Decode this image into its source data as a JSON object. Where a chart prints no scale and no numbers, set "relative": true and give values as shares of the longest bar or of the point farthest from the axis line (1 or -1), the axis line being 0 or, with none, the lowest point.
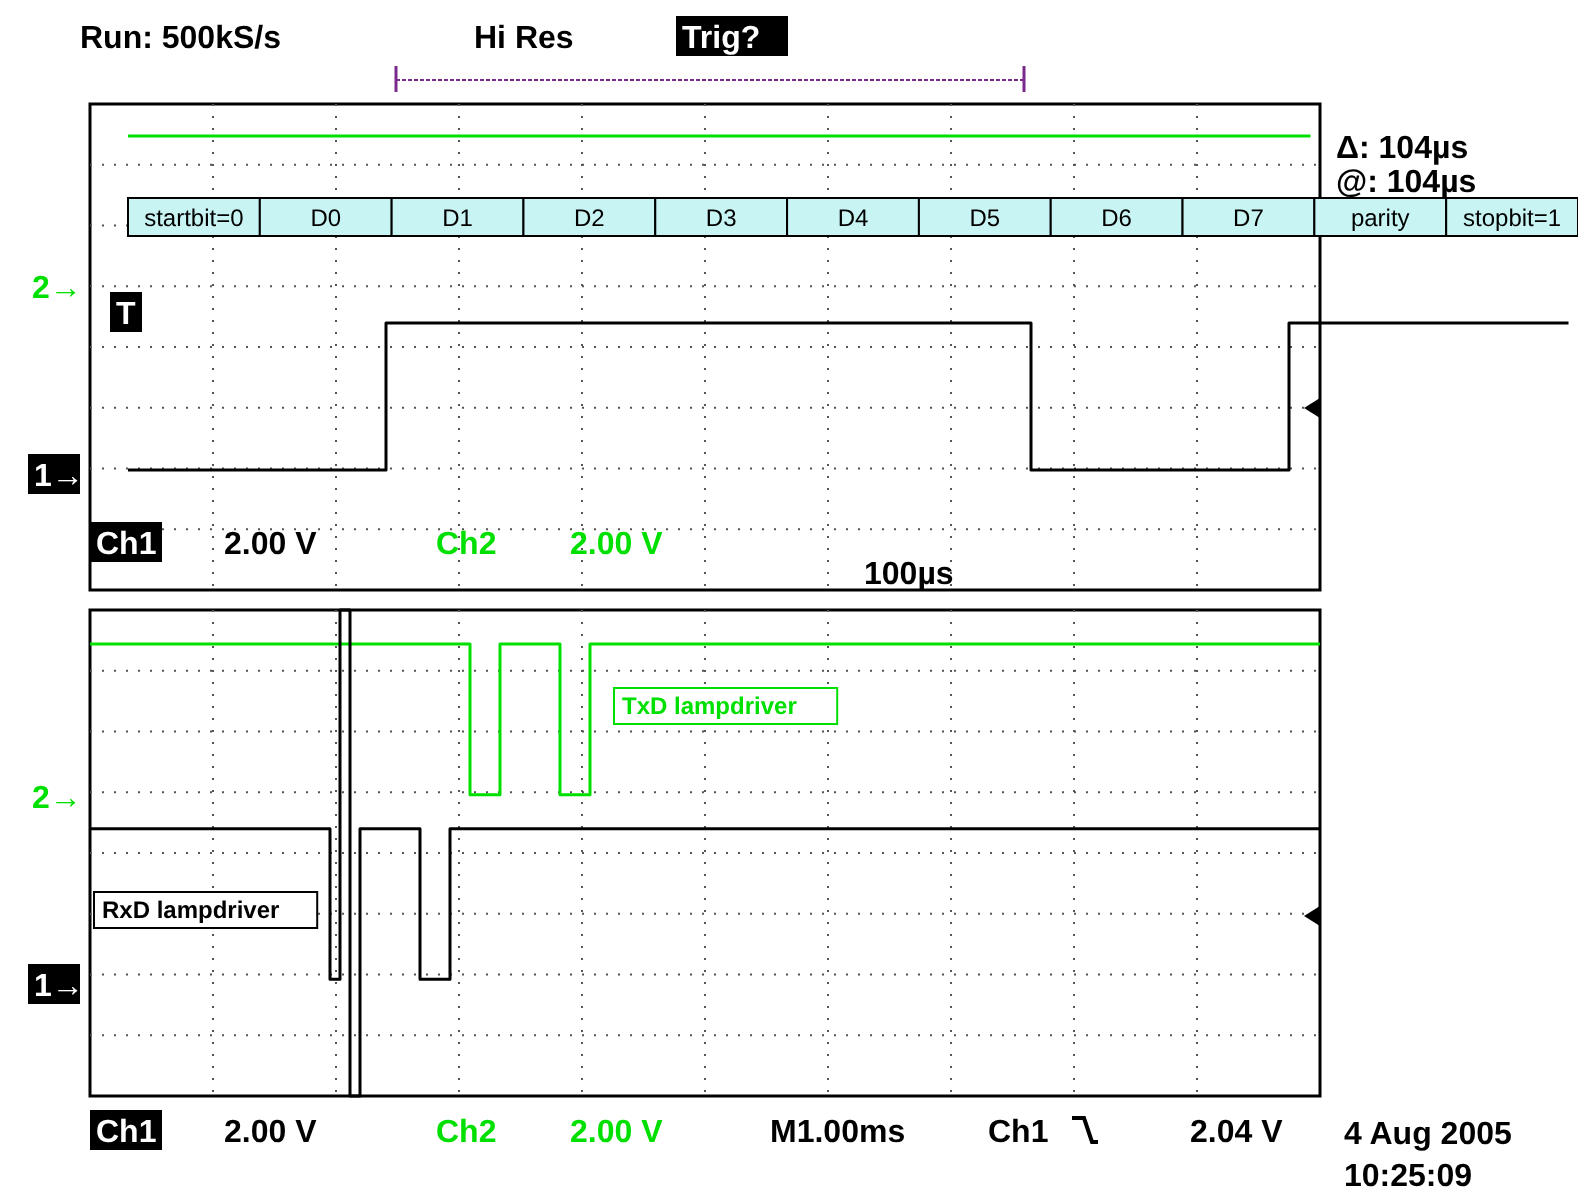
{
  "chart_data": [
    {
      "type": "step",
      "relative": true,
      "grid": true,
      "categories": [
        null,
        null,
        null,
        null,
        null,
        null,
        null,
        null,
        null,
        null,
        null,
        null,
        null,
        null,
        null,
        null,
        null,
        null,
        null,
        null,
        null,
        null,
        null,
        null,
        null,
        null,
        null,
        null,
        null,
        null,
        null,
        null,
        null,
        null,
        null,
        null,
        null,
        null,
        null,
        null,
        null,
        null,
        null,
        null,
        null,
        null,
        null,
        null,
        null,
        null,
        null,
        null,
        null,
        null,
        null,
        null,
        null,
        null,
        null,
        null,
        null,
        null,
        null,
        null,
        null,
        null,
        null,
        null
      ],
      "series": [
        {
          "color": "#00e000",
          "values": [
            1,
            1,
            1,
            1,
            1,
            1,
            1,
            1,
            1,
            1,
            1,
            1,
            1,
            1,
            1,
            1,
            1,
            1,
            1,
            1,
            1,
            1,
            1,
            1,
            1,
            1,
            1,
            1,
            1,
            1,
            1,
            1,
            1,
            1,
            1,
            1,
            1,
            1,
            1,
            1,
            1,
            1,
            1,
            1,
            1,
            1,
            1,
            1,
            1,
            1,
            1,
            1,
            1,
            1,
            1,
            1,
            null,
            null,
            null,
            null,
            null,
            null,
            null,
            null,
            null,
            null,
            null,
            null
          ]
        },
        {
          "color": "#000000",
          "values": [
            0,
            0,
            0,
            0,
            0,
            0,
            0,
            0,
            0,
            0,
            0,
            0,
            0.44,
            0.44,
            0.44,
            0.44,
            0.44,
            0.44,
            0.44,
            0.44,
            0.44,
            0.44,
            0.44,
            0.44,
            0.44,
            0.44,
            0.44,
            0.44,
            0.44,
            0.44,
            0.44,
            0.44,
            0.44,
            0.44,
            0.44,
            0.44,
            0.44,
            0.44,
            0.44,
            0.44,
            0.44,
            0.44,
            0,
            0,
            0,
            0,
            0,
            0,
            0,
            0,
            0,
            0,
            0,
            0,
            0.44,
            0.44,
            0.44,
            0.44,
            0.44,
            0.44,
            0.44,
            0.44,
            0.44,
            0.44,
            0.44,
            0.44,
            0.44,
            0.44
          ]
        }
      ],
      "annotations": [
        "Run: 500kS/s",
        "Hi Res",
        "Trig?",
        "Δ: 104µs",
        "@: 104µs",
        "startbit=0",
        "D0",
        "D1",
        "D2",
        "D3",
        "D4",
        "D5",
        "D6",
        "D7",
        "parity",
        "stopbit=1",
        "Ch1",
        "2.00 V",
        "Ch2",
        "2.00 V",
        "100µs",
        "2→",
        "1→",
        "T"
      ]
    },
    {
      "type": "step",
      "relative": true,
      "grid": true,
      "categories": [
        null,
        null,
        null,
        null,
        null,
        null,
        null,
        null,
        null,
        null,
        null,
        null,
        null,
        null,
        null,
        null,
        null,
        null,
        null,
        null,
        null,
        null,
        null,
        null,
        null,
        null,
        null,
        null,
        null,
        null,
        null,
        null,
        null,
        null,
        null,
        null,
        null,
        null,
        null,
        null,
        null,
        null,
        null,
        null,
        null,
        null,
        null,
        null,
        null,
        null,
        null,
        null,
        null,
        null,
        null,
        null,
        null,
        null,
        null,
        null,
        null,
        null,
        null,
        null,
        null,
        null,
        null,
        null,
        null,
        null,
        null,
        null,
        null,
        null,
        null,
        null,
        null,
        null,
        null,
        null,
        null,
        null,
        null,
        null,
        null,
        null,
        null,
        null,
        null,
        null,
        null,
        null,
        null,
        null,
        null,
        null,
        null,
        null,
        null,
        null,
        null,
        null,
        null,
        null,
        null,
        null,
        null,
        null,
        null,
        null,
        null,
        null,
        null,
        null,
        null,
        null,
        null,
        null,
        null,
        null,
        null,
        null,
        null,
        null
      ],
      "series": [
        {
          "name": "TxD lampdriver",
          "color": "#00e000",
          "values": [
            0.93,
            0.93,
            0.93,
            0.93,
            0.93,
            0.93,
            0.93,
            0.93,
            0.93,
            0.93,
            0.93,
            0.93,
            0.93,
            0.93,
            0.93,
            0.93,
            0.93,
            0.93,
            0.93,
            0.93,
            0.93,
            0.93,
            0.93,
            0.93,
            0.93,
            0.93,
            0.93,
            0.93,
            0.93,
            0.93,
            0.93,
            0.93,
            0.93,
            0.93,
            0.93,
            0.93,
            0.93,
            0.93,
            0.62,
            0.62,
            0.62,
            0.93,
            0.93,
            0.93,
            0.93,
            0.93,
            0.93,
            0.62,
            0.62,
            0.62,
            0.93,
            0.93,
            0.93,
            0.93,
            0.93,
            0.93,
            0.93,
            0.93,
            0.93,
            0.93,
            0.93,
            0.93,
            0.93,
            0.93,
            0.93,
            0.93,
            0.93,
            0.93,
            0.93,
            0.93,
            0.93,
            0.93,
            0.93,
            0.93,
            0.93,
            0.93,
            0.93,
            0.93,
            0.93,
            0.93,
            0.93,
            0.93,
            0.93,
            0.93,
            0.93,
            0.93,
            0.93,
            0.93,
            0.93,
            0.93,
            0.93,
            0.93,
            0.93,
            0.93,
            0.93,
            0.93,
            0.93,
            0.93,
            0.93,
            0.93,
            0.93,
            0.93,
            0.93,
            0.93,
            0.93,
            0.93,
            0.93,
            0.93,
            0.93,
            0.93,
            0.93,
            0.93,
            0.93,
            0.93,
            0.93,
            0.93,
            0.93,
            0.93,
            0.93,
            0.93,
            0.93,
            0.93,
            0.93,
            0.93
          ]
        },
        {
          "name": "RxD lampdriver",
          "color": "#000000",
          "values": [
            0.55,
            0.55,
            0.55,
            0.55,
            0.55,
            0.55,
            0.55,
            0.55,
            0.55,
            0.55,
            0.55,
            0.55,
            0.55,
            0.55,
            0.55,
            0.55,
            0.55,
            0.55,
            0.55,
            0.55,
            0.55,
            0.55,
            0.55,
            0.55,
            0.24,
            1,
            0,
            0.55,
            0.55,
            0.55,
            0.55,
            0.55,
            0.55,
            0.24,
            0.24,
            0.24,
            0.55,
            0.55,
            0.55,
            0.55,
            0.55,
            0.55,
            0.55,
            0.55,
            0.55,
            0.55,
            0.55,
            0.55,
            0.55,
            0.55,
            0.55,
            0.55,
            0.55,
            0.55,
            0.55,
            0.55,
            0.55,
            0.55,
            0.55,
            0.55,
            0.55,
            0.55,
            0.55,
            0.55,
            0.55,
            0.55,
            0.55,
            0.55,
            0.55,
            0.55,
            0.55,
            0.55,
            0.55,
            0.55,
            0.55,
            0.55,
            0.55,
            0.55,
            0.55,
            0.55,
            0.55,
            0.55,
            0.55,
            0.55,
            0.55,
            0.55,
            0.55,
            0.55,
            0.55,
            0.55,
            0.55,
            0.55,
            0.55,
            0.55,
            0.55,
            0.55,
            0.55,
            0.55,
            0.55,
            0.55,
            0.55,
            0.55,
            0.55,
            0.55,
            0.55,
            0.55,
            0.55,
            0.55,
            0.55,
            0.55,
            0.55,
            0.55,
            0.55,
            0.55,
            0.55,
            0.55,
            0.55,
            0.55,
            0.55,
            0.55,
            0.55,
            0.55,
            0.55,
            0.55
          ]
        }
      ],
      "annotations": [
        "2→",
        "1→",
        "Ch1",
        "2.00 V",
        "Ch2",
        "2.00 V",
        "M1.00ms",
        "Ch1",
        "2.04 V",
        "4 Aug 2005",
        "10:25:09"
      ]
    }
  ]
}
